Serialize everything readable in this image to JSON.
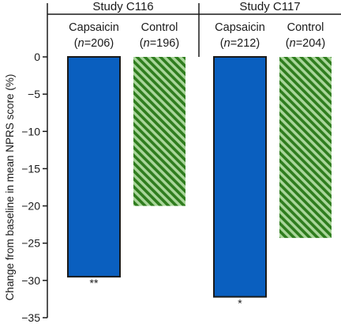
{
  "chart_data": {
    "type": "bar",
    "ylabel": "Change from baseline in mean NPRS score (%)",
    "ylim": [
      -35,
      0
    ],
    "yticks": [
      0,
      -5,
      -10,
      -15,
      -20,
      -25,
      -30,
      -35
    ],
    "yticklabels": [
      "0",
      "−5",
      "−10",
      "−15",
      "−20",
      "−25",
      "−30",
      "−35"
    ],
    "groups": [
      {
        "title": "Study C116",
        "bars": [
          {
            "label": "Capsaicin",
            "n_prefix": "(",
            "n_italic": "n",
            "n_suffix": "=206)",
            "value": -29.5,
            "style": "solid",
            "significance": "**"
          },
          {
            "label": "Control",
            "n_prefix": "(",
            "n_italic": "n",
            "n_suffix": "=196)",
            "value": -20.0,
            "style": "hatched",
            "significance": ""
          }
        ]
      },
      {
        "title": "Study C117",
        "bars": [
          {
            "label": "Capsaicin",
            "n_prefix": "(",
            "n_italic": "n",
            "n_suffix": "=212)",
            "value": -32.2,
            "style": "solid",
            "significance": "*"
          },
          {
            "label": "Control",
            "n_prefix": "(",
            "n_italic": "n",
            "n_suffix": "=204)",
            "value": -24.3,
            "style": "hatched",
            "significance": ""
          }
        ]
      }
    ],
    "colors": {
      "solid_fill": "#0a5fbf",
      "hatch_dark": "#2f7d1e",
      "hatch_light": "#a9d69a",
      "outline": "#1a1a1a"
    },
    "grid": false,
    "legend": "none"
  }
}
